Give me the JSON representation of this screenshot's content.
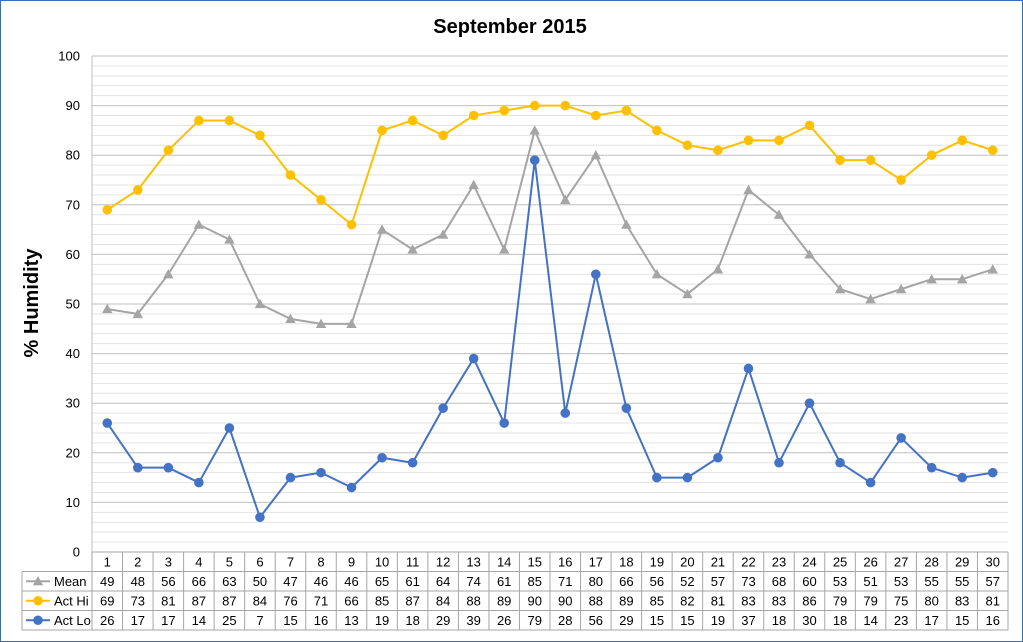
{
  "chart_data": {
    "type": "line",
    "title": "September 2015",
    "xlabel": "",
    "ylabel": "% Humidity",
    "ylim": [
      0,
      100
    ],
    "ytick_step": 10,
    "ytick_labels": [
      "0",
      "10",
      "20",
      "30",
      "40",
      "50",
      "60",
      "70",
      "80",
      "90",
      "100"
    ],
    "grid": true,
    "legend": "data-table-left",
    "categories": [
      "1",
      "2",
      "3",
      "4",
      "5",
      "6",
      "7",
      "8",
      "9",
      "10",
      "11",
      "12",
      "13",
      "14",
      "15",
      "16",
      "17",
      "18",
      "19",
      "20",
      "21",
      "22",
      "23",
      "24",
      "25",
      "26",
      "27",
      "28",
      "29",
      "30"
    ],
    "series": [
      {
        "name": "Mean",
        "color": "#a5a5a5",
        "marker": "triangle",
        "values": [
          49,
          48,
          56,
          66,
          63,
          50,
          47,
          46,
          46,
          65,
          61,
          64,
          74,
          61,
          85,
          71,
          80,
          66,
          56,
          52,
          57,
          73,
          68,
          60,
          53,
          51,
          53,
          55,
          55,
          57
        ]
      },
      {
        "name": "Act Hi",
        "color": "#ffc000",
        "marker": "circle",
        "values": [
          69,
          73,
          81,
          87,
          87,
          84,
          76,
          71,
          66,
          85,
          87,
          84,
          88,
          89,
          90,
          90,
          88,
          89,
          85,
          82,
          81,
          83,
          83,
          86,
          79,
          79,
          75,
          80,
          83,
          81
        ]
      },
      {
        "name": "Act Lo",
        "color": "#4472c4",
        "marker": "circle",
        "values": [
          26,
          17,
          17,
          14,
          25,
          7,
          15,
          16,
          13,
          19,
          18,
          29,
          39,
          26,
          79,
          28,
          56,
          29,
          15,
          15,
          19,
          37,
          18,
          30,
          18,
          14,
          23,
          17,
          15,
          16
        ]
      }
    ]
  }
}
